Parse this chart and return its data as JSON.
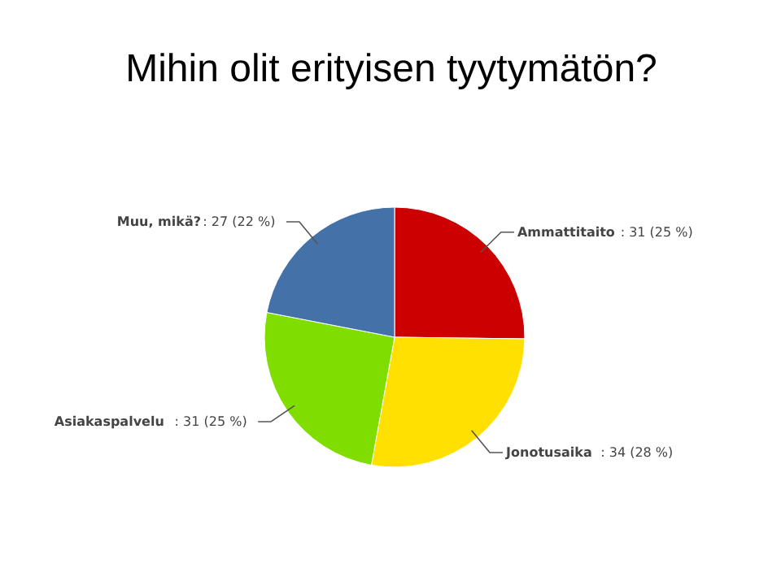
{
  "chart_data": {
    "type": "pie",
    "title": "Mihin olit erityisen tyytymätön?",
    "categories": [
      "Ammattitaito",
      "Jonotusaika",
      "Asiakaspalvelu",
      "Muu, mikä?"
    ],
    "values": [
      31,
      34,
      31,
      27
    ],
    "colors": [
      "#cc0000",
      "#ffe000",
      "#80dd00",
      "#4472a8"
    ],
    "value_labels": [
      ": 31 (25 %)",
      ": 34 (28 %)",
      ": 31 (25 %)",
      ": 27 (22 %)"
    ]
  }
}
